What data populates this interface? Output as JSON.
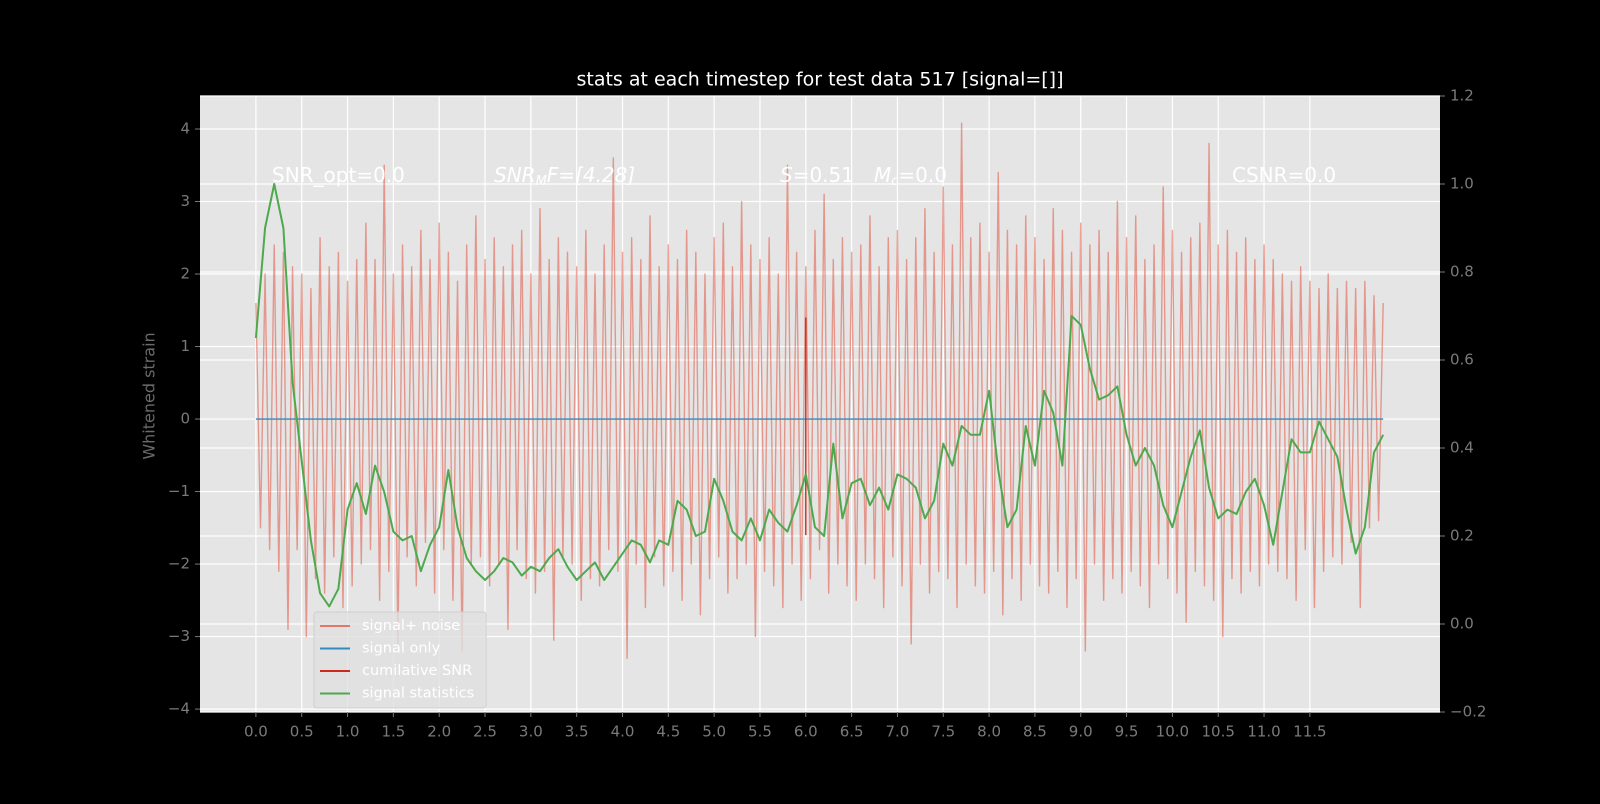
{
  "chart_data": {
    "type": "line",
    "title": "stats at each timestep for test data 517 [signal=[]]",
    "y_label": "Whitened strain",
    "xlim": [
      -0.61,
      12.92
    ],
    "ylim": [
      -4.04,
      4.455
    ],
    "y2lim": [
      -0.2,
      1.2
    ],
    "grid": true,
    "legend": "lower left",
    "xticks": [
      {
        "value": 0,
        "label": "0.0"
      },
      {
        "value": 0.5,
        "label": "0.5"
      },
      {
        "value": 1,
        "label": "1.0"
      },
      {
        "value": 1.5,
        "label": "1.5"
      },
      {
        "value": 2,
        "label": "2.0"
      },
      {
        "value": 2.5,
        "label": "2.5"
      },
      {
        "value": 3,
        "label": "3.0"
      },
      {
        "value": 3.5,
        "label": "3.5"
      },
      {
        "value": 4,
        "label": "4.0"
      },
      {
        "value": 4.5,
        "label": "4.5"
      },
      {
        "value": 5,
        "label": "5.0"
      },
      {
        "value": 5.5,
        "label": "5.5"
      },
      {
        "value": 6,
        "label": "6.0"
      },
      {
        "value": 6.5,
        "label": "6.5"
      },
      {
        "value": 7,
        "label": "7.0"
      },
      {
        "value": 7.5,
        "label": "7.5"
      },
      {
        "value": 8,
        "label": "8.0"
      },
      {
        "value": 8.5,
        "label": "8.5"
      },
      {
        "value": 9,
        "label": "9.0"
      },
      {
        "value": 9.5,
        "label": "9.5"
      },
      {
        "value": 10,
        "label": "10.0"
      },
      {
        "value": 10.5,
        "label": "10.5"
      },
      {
        "value": 11,
        "label": "11.0"
      },
      {
        "value": 11.5,
        "label": "11.5"
      }
    ],
    "yticks": [
      {
        "value": -4,
        "label": "−4"
      },
      {
        "value": -3,
        "label": "−3"
      },
      {
        "value": -2,
        "label": "−2"
      },
      {
        "value": -1,
        "label": "−1"
      },
      0,
      1,
      2,
      3,
      4
    ],
    "y2ticks": [
      {
        "value": -0.2,
        "label": "−0.2"
      },
      {
        "value": 0,
        "label": "0.0"
      },
      {
        "value": 0.2,
        "label": "0.2"
      },
      {
        "value": 0.4,
        "label": "0.4"
      },
      {
        "value": 0.6,
        "label": "0.6"
      },
      {
        "value": 0.8,
        "label": "0.8"
      },
      {
        "value": 1,
        "label": "1.0"
      },
      {
        "value": 1.2,
        "label": "1.2"
      }
    ],
    "annotations": [
      {
        "text": "SNR_opt=0.0"
      },
      {
        "base": "SNR",
        "sub": "M",
        "rest": "F=[4.28]"
      },
      {
        "base": "S",
        "rest": "=0.51"
      },
      {
        "base": "M",
        "sub": "c",
        "rest": "=0.0"
      },
      {
        "text": "CSNR=0.0"
      }
    ],
    "series": [
      {
        "name": "signal+ noise",
        "color": "#E24A33",
        "alpha": 0.5,
        "x": [
          0,
          0.05,
          0.1,
          0.15,
          0.2,
          0.25,
          0.3,
          0.35,
          0.4,
          0.45,
          0.5,
          0.55,
          0.6,
          0.65,
          0.7,
          0.75,
          0.8,
          0.85,
          0.9,
          0.95,
          1,
          1.05,
          1.1,
          1.15,
          1.2,
          1.25,
          1.3,
          1.35,
          1.4,
          1.45,
          1.5,
          1.55,
          1.6,
          1.65,
          1.7,
          1.75,
          1.8,
          1.85,
          1.9,
          1.95,
          2,
          2.05,
          2.1,
          2.15,
          2.2,
          2.25,
          2.3,
          2.35,
          2.4,
          2.45,
          2.5,
          2.55,
          2.6,
          2.65,
          2.7,
          2.75,
          2.8,
          2.85,
          2.9,
          2.95,
          3,
          3.05,
          3.1,
          3.15,
          3.2,
          3.25,
          3.3,
          3.35,
          3.4,
          3.45,
          3.5,
          3.55,
          3.6,
          3.65,
          3.7,
          3.75,
          3.8,
          3.85,
          3.9,
          3.95,
          4,
          4.05,
          4.1,
          4.15,
          4.2,
          4.25,
          4.3,
          4.35,
          4.4,
          4.45,
          4.5,
          4.55,
          4.6,
          4.65,
          4.7,
          4.75,
          4.8,
          4.85,
          4.9,
          4.95,
          5,
          5.05,
          5.1,
          5.15,
          5.2,
          5.25,
          5.3,
          5.35,
          5.4,
          5.45,
          5.5,
          5.55,
          5.6,
          5.65,
          5.7,
          5.75,
          5.8,
          5.85,
          5.9,
          5.95,
          6,
          6.05,
          6.1,
          6.15,
          6.2,
          6.25,
          6.3,
          6.35,
          6.4,
          6.45,
          6.5,
          6.55,
          6.6,
          6.65,
          6.7,
          6.75,
          6.8,
          6.85,
          6.9,
          6.95,
          7,
          7.05,
          7.1,
          7.15,
          7.2,
          7.25,
          7.3,
          7.35,
          7.4,
          7.45,
          7.5,
          7.55,
          7.6,
          7.65,
          7.7,
          7.75,
          7.8,
          7.85,
          7.9,
          7.95,
          8,
          8.05,
          8.1,
          8.15,
          8.2,
          8.25,
          8.3,
          8.35,
          8.4,
          8.45,
          8.5,
          8.55,
          8.6,
          8.65,
          8.7,
          8.75,
          8.8,
          8.85,
          8.9,
          8.95,
          9,
          9.05,
          9.1,
          9.15,
          9.2,
          9.25,
          9.3,
          9.35,
          9.4,
          9.45,
          9.5,
          9.55,
          9.6,
          9.65,
          9.7,
          9.75,
          9.8,
          9.85,
          9.9,
          9.95,
          10,
          10.05,
          10.1,
          10.15,
          10.2,
          10.25,
          10.3,
          10.35,
          10.4,
          10.45,
          10.5,
          10.55,
          10.6,
          10.65,
          10.7,
          10.75,
          10.8,
          10.85,
          10.9,
          10.95,
          11,
          11.05,
          11.1,
          11.15,
          11.2,
          11.25,
          11.3,
          11.35,
          11.4,
          11.45,
          11.5,
          11.55,
          11.6,
          11.65,
          11.7,
          11.75,
          11.8,
          11.85,
          11.9,
          11.95,
          12,
          12.05,
          12.1,
          12.15,
          12.2,
          12.25,
          12.3
        ],
        "values": [
          1.6,
          -1.5,
          2.0,
          -1.8,
          2.4,
          -2.1,
          2.3,
          -2.9,
          2.1,
          -1.8,
          2.0,
          -3.0,
          1.8,
          -2.2,
          2.5,
          -2.4,
          2.1,
          -1.9,
          2.3,
          -2.6,
          1.9,
          -2.3,
          2.2,
          -2.0,
          2.7,
          -1.8,
          2.2,
          -2.5,
          3.5,
          -2.1,
          2.0,
          -3.1,
          2.4,
          -1.9,
          2.1,
          -2.3,
          2.6,
          -1.7,
          2.2,
          -2.4,
          2.7,
          -1.8,
          2.3,
          -2.5,
          1.9,
          -3.2,
          2.4,
          -2.0,
          2.8,
          -1.9,
          2.2,
          -2.3,
          2.5,
          -2.0,
          2.1,
          -2.9,
          2.4,
          -1.8,
          2.6,
          -2.2,
          2.0,
          -2.4,
          2.9,
          -2.1,
          2.2,
          -3.05,
          2.5,
          -1.9,
          2.3,
          -2.0,
          2.1,
          -2.5,
          2.6,
          -2.2,
          2.0,
          -2.3,
          2.4,
          -1.8,
          3.6,
          -2.1,
          2.3,
          -3.3,
          2.5,
          -2.0,
          2.2,
          -2.6,
          2.8,
          -1.9,
          2.1,
          -2.3,
          2.4,
          -2.1,
          2.2,
          -2.5,
          2.6,
          -2.0,
          2.3,
          -2.7,
          2.0,
          -2.2,
          2.5,
          -1.9,
          2.7,
          -2.4,
          2.1,
          -2.2,
          3.0,
          -2.0,
          2.4,
          -3.0,
          2.2,
          -2.1,
          2.5,
          -2.3,
          2.0,
          -2.6,
          3.5,
          -2.0,
          2.3,
          -2.5,
          2.1,
          -2.2,
          2.6,
          -1.8,
          3.1,
          -2.4,
          2.2,
          -2.0,
          2.5,
          -2.3,
          2.3,
          -2.5,
          2.4,
          -2.0,
          2.8,
          -2.2,
          2.1,
          -2.6,
          2.5,
          -1.9,
          2.6,
          -2.3,
          2.2,
          -3.1,
          2.5,
          -2.0,
          2.9,
          -2.4,
          2.3,
          -2.1,
          3.2,
          -2.2,
          2.4,
          -2.6,
          4.08,
          -2.0,
          2.5,
          -2.3,
          2.7,
          -2.4,
          2.3,
          -2.1,
          3.4,
          -2.7,
          2.6,
          -2.2,
          2.4,
          -2.5,
          2.8,
          -2.0,
          2.5,
          -2.3,
          2.2,
          -2.4,
          2.9,
          -2.1,
          2.6,
          -2.6,
          2.3,
          -2.2,
          2.7,
          -3.2,
          2.4,
          -2.0,
          2.6,
          -2.5,
          2.3,
          -2.2,
          3.0,
          -2.4,
          2.5,
          -2.1,
          2.8,
          -2.3,
          2.2,
          -2.6,
          2.4,
          -2.0,
          3.2,
          -2.2,
          2.6,
          -2.4,
          2.3,
          -2.8,
          2.5,
          -2.1,
          2.7,
          -2.3,
          3.8,
          -2.5,
          2.4,
          -3.0,
          2.6,
          -2.2,
          2.3,
          -2.4,
          2.5,
          -2.1,
          2.2,
          -2.3,
          2.4,
          -2.0,
          2.2,
          -2.1,
          2.0,
          -2.2,
          1.9,
          -2.5,
          2.1,
          -1.8,
          1.9,
          -2.6,
          1.8,
          -2.1,
          2.0,
          -1.9,
          1.8,
          -2.0,
          1.9,
          -1.7,
          1.8,
          -2.6,
          1.9,
          -1.5,
          1.7,
          -1.4,
          1.6
        ]
      },
      {
        "name": "signal only",
        "color": "#348ABD",
        "x": [
          0,
          12.3
        ],
        "values": [
          0,
          0
        ]
      },
      {
        "name": "cumilative SNR",
        "color": "#CC2A1A",
        "x": [
          6.0,
          6.0
        ],
        "values": [
          1.4,
          -1.6
        ]
      },
      {
        "name": "signal statistics",
        "color": "#4EA94E",
        "axis": "y2",
        "x": [
          0,
          0.1,
          0.2,
          0.3,
          0.4,
          0.5,
          0.6,
          0.7,
          0.8,
          0.9,
          1,
          1.1,
          1.2,
          1.3,
          1.4,
          1.5,
          1.6,
          1.7,
          1.8,
          1.9,
          2,
          2.1,
          2.2,
          2.3,
          2.4,
          2.5,
          2.6,
          2.7,
          2.8,
          2.9,
          3,
          3.1,
          3.2,
          3.3,
          3.4,
          3.5,
          3.6,
          3.7,
          3.8,
          3.9,
          4,
          4.1,
          4.2,
          4.3,
          4.4,
          4.5,
          4.6,
          4.7,
          4.8,
          4.9,
          5,
          5.1,
          5.2,
          5.3,
          5.4,
          5.5,
          5.6,
          5.7,
          5.8,
          5.9,
          6,
          6.1,
          6.2,
          6.3,
          6.4,
          6.5,
          6.6,
          6.7,
          6.8,
          6.9,
          7,
          7.1,
          7.2,
          7.3,
          7.4,
          7.5,
          7.6,
          7.7,
          7.8,
          7.9,
          8,
          8.1,
          8.2,
          8.3,
          8.4,
          8.5,
          8.6,
          8.7,
          8.8,
          8.9,
          9,
          9.1,
          9.2,
          9.3,
          9.4,
          9.5,
          9.6,
          9.7,
          9.8,
          9.9,
          10,
          10.1,
          10.2,
          10.3,
          10.4,
          10.5,
          10.6,
          10.7,
          10.8,
          10.9,
          11,
          11.1,
          11.2,
          11.3,
          11.4,
          11.5,
          11.6,
          11.7,
          11.8,
          11.9,
          12,
          12.1,
          12.2,
          12.3
        ],
        "values": [
          0.65,
          0.9,
          1.0,
          0.9,
          0.55,
          0.37,
          0.19,
          0.07,
          0.04,
          0.08,
          0.26,
          0.32,
          0.25,
          0.36,
          0.3,
          0.21,
          0.19,
          0.2,
          0.12,
          0.18,
          0.22,
          0.35,
          0.22,
          0.15,
          0.12,
          0.1,
          0.12,
          0.15,
          0.14,
          0.11,
          0.13,
          0.12,
          0.15,
          0.17,
          0.13,
          0.1,
          0.12,
          0.14,
          0.1,
          0.13,
          0.16,
          0.19,
          0.18,
          0.14,
          0.19,
          0.18,
          0.28,
          0.26,
          0.2,
          0.21,
          0.33,
          0.28,
          0.21,
          0.19,
          0.24,
          0.19,
          0.26,
          0.23,
          0.21,
          0.27,
          0.34,
          0.22,
          0.2,
          0.41,
          0.24,
          0.32,
          0.33,
          0.27,
          0.31,
          0.26,
          0.34,
          0.33,
          0.31,
          0.24,
          0.28,
          0.41,
          0.36,
          0.45,
          0.43,
          0.43,
          0.53,
          0.35,
          0.22,
          0.26,
          0.45,
          0.36,
          0.53,
          0.48,
          0.36,
          0.7,
          0.68,
          0.58,
          0.51,
          0.52,
          0.54,
          0.43,
          0.36,
          0.4,
          0.36,
          0.27,
          0.22,
          0.3,
          0.38,
          0.44,
          0.31,
          0.24,
          0.26,
          0.25,
          0.3,
          0.33,
          0.27,
          0.18,
          0.3,
          0.42,
          0.39,
          0.39,
          0.46,
          0.42,
          0.38,
          0.26,
          0.16,
          0.22,
          0.39,
          0.43
        ]
      }
    ]
  }
}
